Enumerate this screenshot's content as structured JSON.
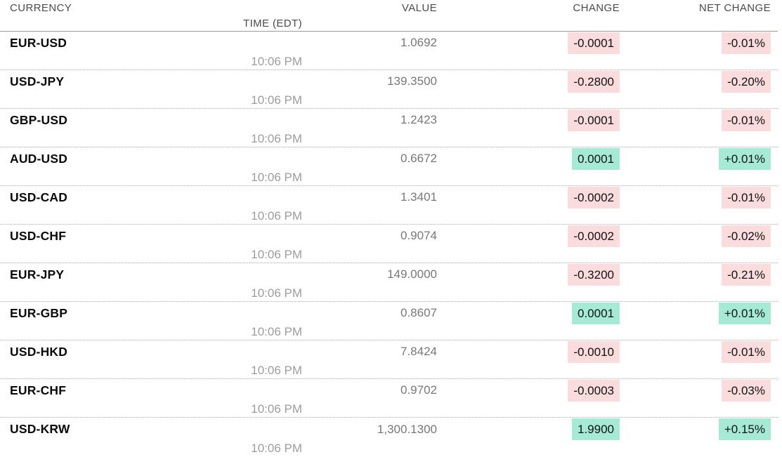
{
  "colors": {
    "positive_bg": "#a5ead5",
    "negative_bg": "#fbdcdc",
    "header_text": "#4b4b4b",
    "currency_text": "#0a0a0a",
    "value_text": "#77787b",
    "time_text": "#9c9da0"
  },
  "chart_data": {
    "type": "table",
    "columns": [
      "CURRENCY",
      "VALUE",
      "CHANGE",
      "NET CHANGE",
      "TIME (EDT)"
    ],
    "rows": [
      {
        "currency": "EUR-USD",
        "value": "1.0692",
        "change": "-0.0001",
        "net_change": "-0.01%",
        "time": "10:06 PM",
        "direction": "down"
      },
      {
        "currency": "USD-JPY",
        "value": "139.3500",
        "change": "-0.2800",
        "net_change": "-0.20%",
        "time": "10:06 PM",
        "direction": "down"
      },
      {
        "currency": "GBP-USD",
        "value": "1.2423",
        "change": "-0.0001",
        "net_change": "-0.01%",
        "time": "10:06 PM",
        "direction": "down"
      },
      {
        "currency": "AUD-USD",
        "value": "0.6672",
        "change": "0.0001",
        "net_change": "+0.01%",
        "time": "10:06 PM",
        "direction": "up"
      },
      {
        "currency": "USD-CAD",
        "value": "1.3401",
        "change": "-0.0002",
        "net_change": "-0.01%",
        "time": "10:06 PM",
        "direction": "down"
      },
      {
        "currency": "USD-CHF",
        "value": "0.9074",
        "change": "-0.0002",
        "net_change": "-0.02%",
        "time": "10:06 PM",
        "direction": "down"
      },
      {
        "currency": "EUR-JPY",
        "value": "149.0000",
        "change": "-0.3200",
        "net_change": "-0.21%",
        "time": "10:06 PM",
        "direction": "down"
      },
      {
        "currency": "EUR-GBP",
        "value": "0.8607",
        "change": "0.0001",
        "net_change": "+0.01%",
        "time": "10:06 PM",
        "direction": "up"
      },
      {
        "currency": "USD-HKD",
        "value": "7.8424",
        "change": "-0.0010",
        "net_change": "-0.01%",
        "time": "10:06 PM",
        "direction": "down"
      },
      {
        "currency": "EUR-CHF",
        "value": "0.9702",
        "change": "-0.0003",
        "net_change": "-0.03%",
        "time": "10:06 PM",
        "direction": "down"
      },
      {
        "currency": "USD-KRW",
        "value": "1,300.1300",
        "change": "1.9900",
        "net_change": "+0.15%",
        "time": "10:06 PM",
        "direction": "up"
      }
    ]
  }
}
